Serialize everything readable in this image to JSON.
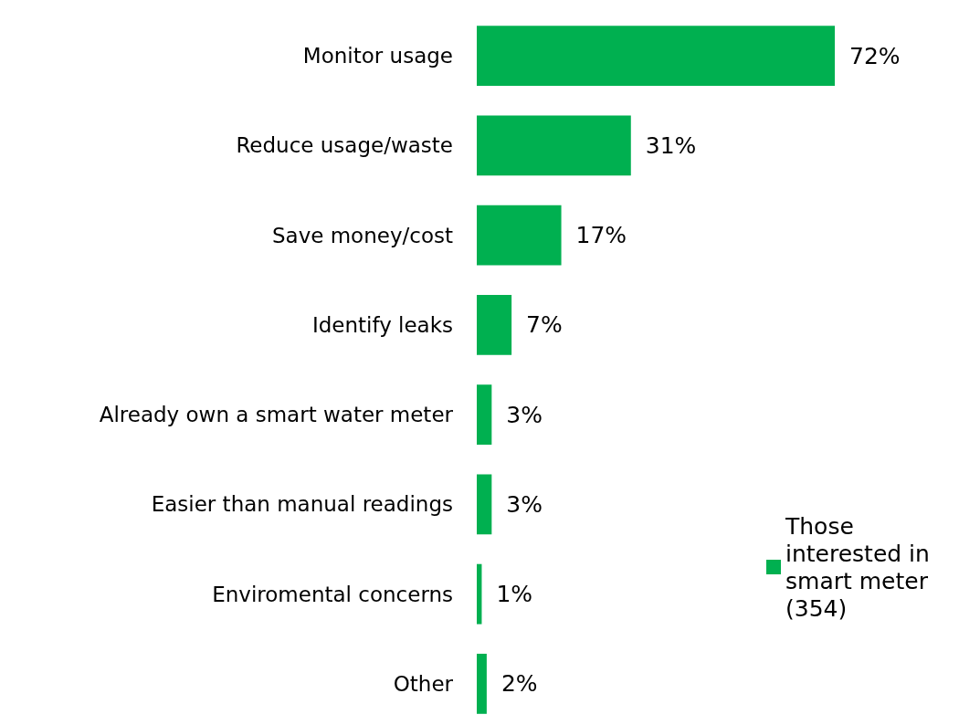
{
  "chart_data": {
    "type": "bar",
    "orientation": "horizontal",
    "categories": [
      "Monitor usage",
      "Reduce usage/waste",
      "Save money/cost",
      "Identify leaks",
      "Already own a smart water meter",
      "Easier than manual readings",
      "Enviromental concerns",
      "Other"
    ],
    "series": [
      {
        "name": "Those interested in smart meter (354)",
        "color": "#00b050",
        "values": [
          72,
          31,
          17,
          7,
          3,
          3,
          1,
          2
        ],
        "value_labels": [
          "72%",
          "31%",
          "17%",
          "7%",
          "3%",
          "3%",
          "1%",
          "2%"
        ]
      }
    ],
    "legend": "bottom right"
  }
}
